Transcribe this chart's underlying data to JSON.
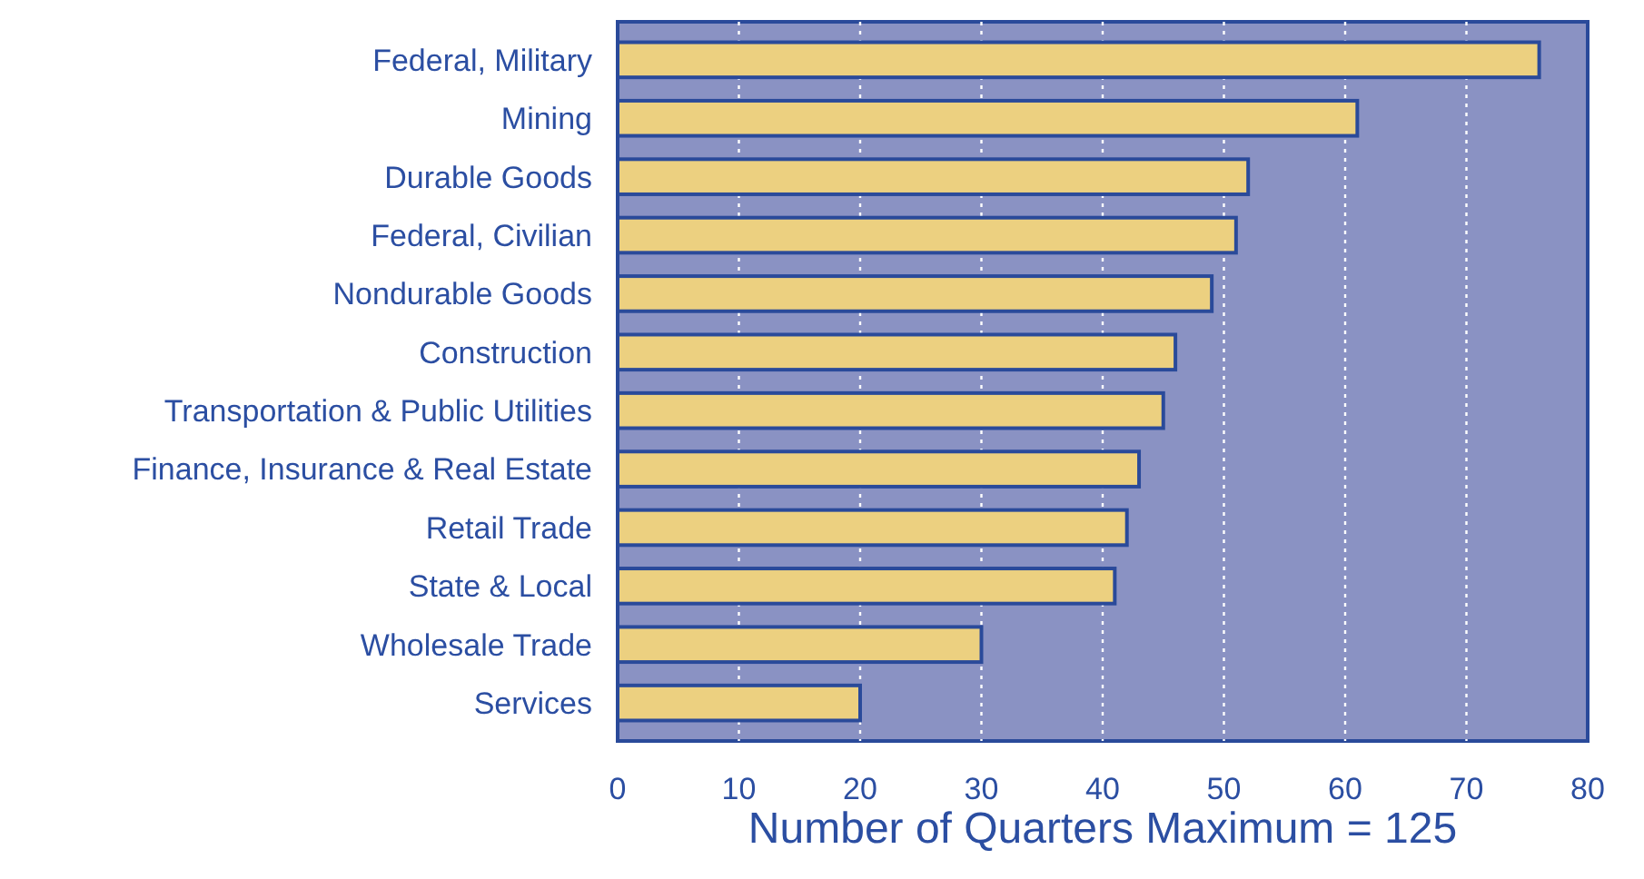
{
  "chart_data": {
    "type": "bar",
    "orientation": "horizontal",
    "xlabel": "Number of Quarters Maximum = 125",
    "categories": [
      "Federal, Military",
      "Mining",
      "Durable Goods",
      "Federal, Civilian",
      "Nondurable Goods",
      "Construction",
      "Transportation & Public Utilities",
      "Finance, Insurance & Real Estate",
      "Retail Trade",
      "State & Local",
      "Wholesale Trade",
      "Services"
    ],
    "values": [
      76,
      61,
      52,
      51,
      49,
      46,
      45,
      43,
      42,
      41,
      30,
      20
    ],
    "color": "#ecd080",
    "xlim": [
      0,
      80
    ],
    "xticks": [
      0,
      10,
      20,
      30,
      40,
      50,
      60,
      70,
      80
    ],
    "grid": "x"
  }
}
